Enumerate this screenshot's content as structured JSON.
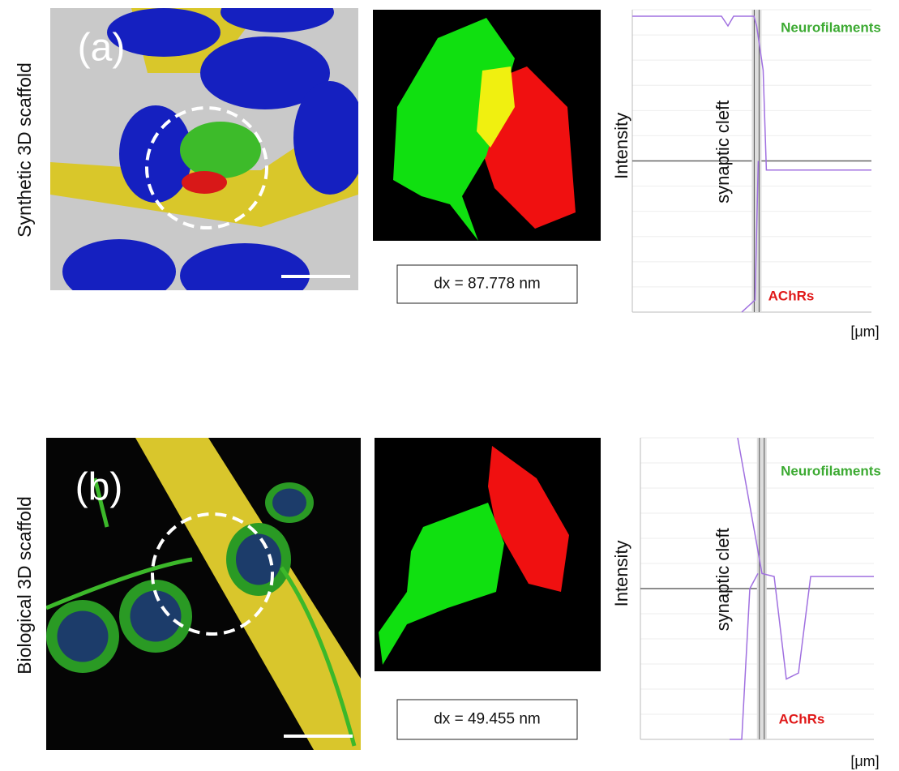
{
  "panels": [
    {
      "label": "(a)",
      "scaffold": "Synthetic  3D scaffold",
      "dx": "dx = 87.778 nm",
      "profile": {
        "neurofilaments": "Neurofilaments",
        "achrs": "AChRs",
        "ylabel": "Intensity",
        "cleft": "synaptic cleft",
        "xunit": "[μm]"
      }
    },
    {
      "label": "(b)",
      "scaffold": "Biological 3D scaffold",
      "dx": "dx = 49.455 nm",
      "profile": {
        "neurofilaments": "Neurofilaments",
        "achrs": "AChRs",
        "ylabel": "Intensity",
        "cleft": "synaptic cleft",
        "xunit": "[μm]"
      }
    }
  ]
}
